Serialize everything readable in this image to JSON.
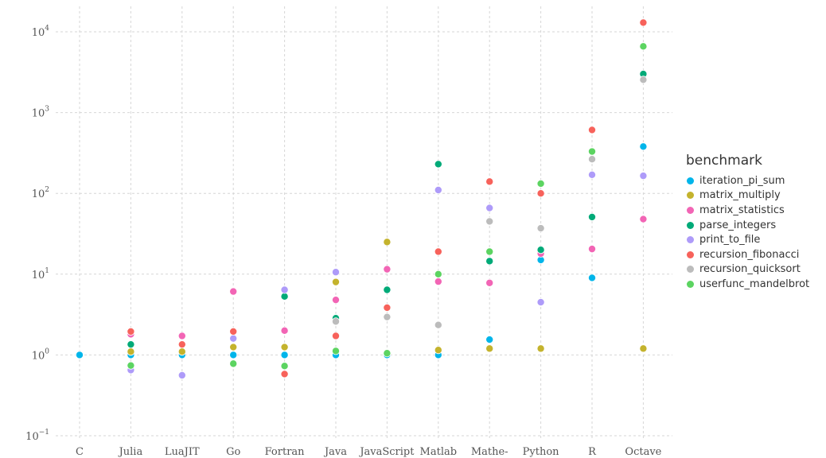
{
  "chart_data": {
    "type": "scatter",
    "title": "",
    "xlabel": "",
    "ylabel": "",
    "yscale": "log",
    "ylim": [
      0.1,
      15000
    ],
    "grid": true,
    "legend": "right",
    "categories": [
      "C",
      "Julia",
      "LuaJIT",
      "Go",
      "Fortran",
      "Java",
      "JavaScript",
      "Matlab",
      "Mathe-",
      "Python",
      "R",
      "Octave"
    ],
    "y_ticks": [
      {
        "base": "10",
        "exp": "−1",
        "value": 0.1
      },
      {
        "base": "10",
        "exp": "0",
        "value": 1
      },
      {
        "base": "10",
        "exp": "1",
        "value": 10
      },
      {
        "base": "10",
        "exp": "2",
        "value": 100
      },
      {
        "base": "10",
        "exp": "3",
        "value": 1000
      },
      {
        "base": "10",
        "exp": "4",
        "value": 10000
      }
    ],
    "legend_title": "benchmark",
    "series": [
      {
        "name": "iteration_pi_sum",
        "color": "#00B5EA",
        "values": [
          1.0,
          1.0,
          1.0,
          1.0,
          1.0,
          1.0,
          1.0,
          1.0,
          1.55,
          15,
          9,
          380
        ]
      },
      {
        "name": "matrix_multiply",
        "color": "#C4B32D",
        "values": [
          null,
          1.1,
          1.1,
          1.25,
          1.25,
          8,
          25,
          1.15,
          1.2,
          1.2,
          null,
          1.2
        ]
      },
      {
        "name": "matrix_statistics",
        "color": "#F265B5",
        "values": [
          null,
          1.8,
          1.72,
          6.1,
          2.0,
          4.8,
          11.5,
          8.1,
          7.8,
          18,
          20.5,
          48
        ]
      },
      {
        "name": "parse_integers",
        "color": "#00AA78",
        "values": [
          null,
          1.35,
          null,
          null,
          5.3,
          2.85,
          6.4,
          230,
          14.5,
          20,
          51,
          3000
        ]
      },
      {
        "name": "print_to_file",
        "color": "#AE9BF9",
        "values": [
          null,
          0.65,
          0.56,
          1.6,
          6.4,
          10.6,
          null,
          110,
          66,
          4.5,
          170,
          165
        ]
      },
      {
        "name": "recursion_fibonacci",
        "color": "#F7625B",
        "values": [
          null,
          1.95,
          1.35,
          1.95,
          0.58,
          1.72,
          3.85,
          19,
          140,
          100,
          610,
          13000
        ]
      },
      {
        "name": "recursion_quicksort",
        "color": "#BCBCBC",
        "values": [
          null,
          null,
          null,
          null,
          null,
          2.6,
          2.95,
          2.35,
          45,
          37,
          265,
          2550
        ]
      },
      {
        "name": "userfunc_mandelbrot",
        "color": "#5CD461",
        "values": [
          null,
          0.74,
          null,
          0.78,
          0.73,
          1.12,
          1.05,
          10,
          19,
          132,
          330,
          6600
        ]
      }
    ]
  }
}
